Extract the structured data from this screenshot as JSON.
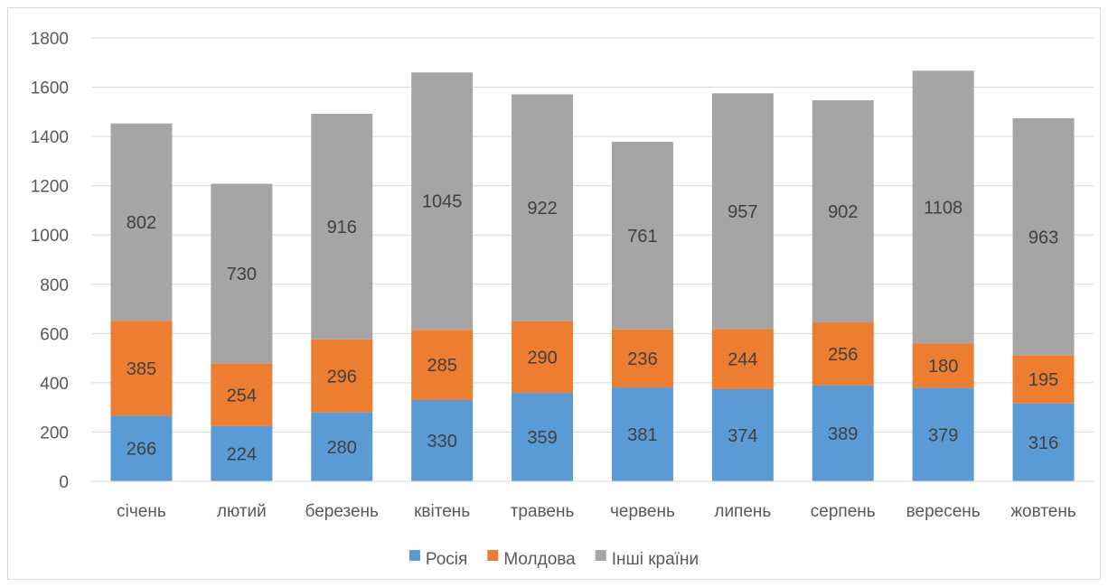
{
  "chart_data": {
    "type": "bar",
    "stacked": true,
    "title": "",
    "xlabel": "",
    "ylabel": "",
    "ylim": [
      0,
      1800
    ],
    "y_ticks": [
      0,
      200,
      400,
      600,
      800,
      1000,
      1200,
      1400,
      1600,
      1800
    ],
    "grid": true,
    "legend_position": "bottom",
    "categories": [
      "січень",
      "лютий",
      "березень",
      "квітень",
      "травень",
      "червень",
      "липень",
      "серпень",
      "вересень",
      "жовтень"
    ],
    "series": [
      {
        "name": "Росія",
        "color": "#5b9bd5",
        "values": [
          266,
          224,
          280,
          330,
          359,
          381,
          374,
          389,
          379,
          316
        ]
      },
      {
        "name": "Молдова",
        "color": "#ed7d31",
        "values": [
          385,
          254,
          296,
          285,
          290,
          236,
          244,
          256,
          180,
          195
        ]
      },
      {
        "name": "Інші країни",
        "color": "#a5a5a5",
        "values": [
          802,
          730,
          916,
          1045,
          922,
          761,
          957,
          902,
          1108,
          963
        ]
      }
    ]
  }
}
